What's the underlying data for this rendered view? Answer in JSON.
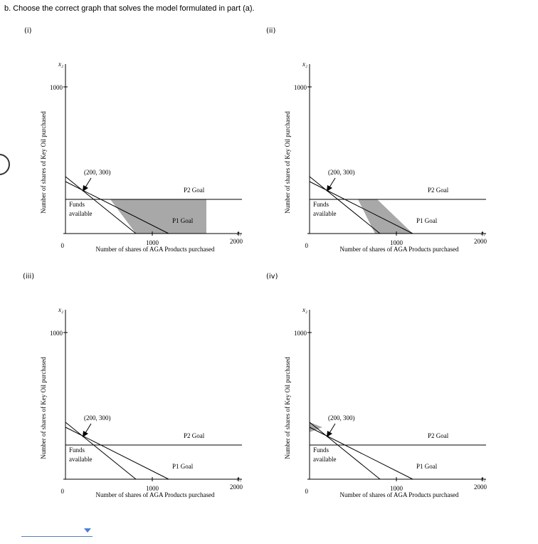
{
  "question": {
    "text": "b. Choose the correct graph that solves the model formulated in part (a)."
  },
  "panels": [
    {
      "id": "i",
      "label": "(i)"
    },
    {
      "id": "ii",
      "label": "(ii)"
    },
    {
      "id": "iii",
      "label": "(iii)"
    },
    {
      "id": "iv",
      "label": "(iv)"
    }
  ],
  "graph_text": {
    "x_var": "x₁",
    "y_var": "x₂",
    "y_tick": "1000",
    "origin": "0",
    "x_tick_mid": "1000",
    "x_tick_end": "2000",
    "x_axis_label": "Number of shares of AGA Products purchased",
    "y_axis_label": "Number of shares of Key Oil purchased",
    "point_label": "(200, 300)",
    "p2_goal": "P2 Goal",
    "p1_goal": "P1 Goal",
    "funds_line1": "Funds",
    "funds_line2": "available"
  },
  "answer": {
    "selected": ""
  },
  "colors": {
    "shade": "#a8a8a8",
    "line": "#000000",
    "select_accent": "#4a7fd4"
  }
}
